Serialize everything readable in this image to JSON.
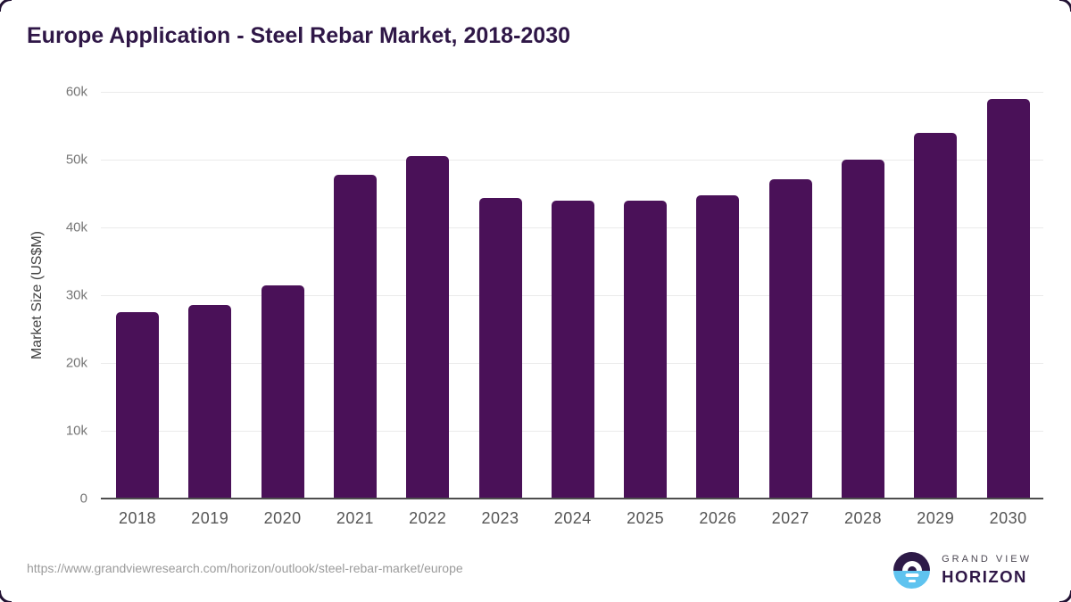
{
  "chart_data": {
    "type": "bar",
    "title": "Europe Application - Steel Rebar Market, 2018-2030",
    "xlabel": "",
    "ylabel": "Market Size (US$M)",
    "categories": [
      "2018",
      "2019",
      "2020",
      "2021",
      "2022",
      "2023",
      "2024",
      "2025",
      "2026",
      "2027",
      "2028",
      "2029",
      "2030"
    ],
    "values": [
      27500,
      28500,
      31500,
      47700,
      50500,
      44400,
      43900,
      44000,
      44700,
      47100,
      50000,
      54000,
      58900
    ],
    "ylim": [
      0,
      60000
    ],
    "yticks": [
      {
        "value": 0,
        "label": "0"
      },
      {
        "value": 10000,
        "label": "10k"
      },
      {
        "value": 20000,
        "label": "20k"
      },
      {
        "value": 30000,
        "label": "30k"
      },
      {
        "value": 40000,
        "label": "40k"
      },
      {
        "value": 50000,
        "label": "50k"
      },
      {
        "value": 60000,
        "label": "60k"
      }
    ],
    "grid": "horizontal",
    "legend": "none",
    "bar_color": "#4a1158"
  },
  "footer": {
    "source_url": "https://www.grandviewresearch.com/horizon/outlook/steel-rebar-market/europe",
    "logo": {
      "line1": "GRAND VIEW",
      "line2": "HORIZON"
    }
  },
  "colors": {
    "bar_purple": "#4a1158",
    "title_purple": "#2f1747",
    "logo_dark_purple": "#2d1a47",
    "logo_light_blue": "#5fc3ef"
  }
}
